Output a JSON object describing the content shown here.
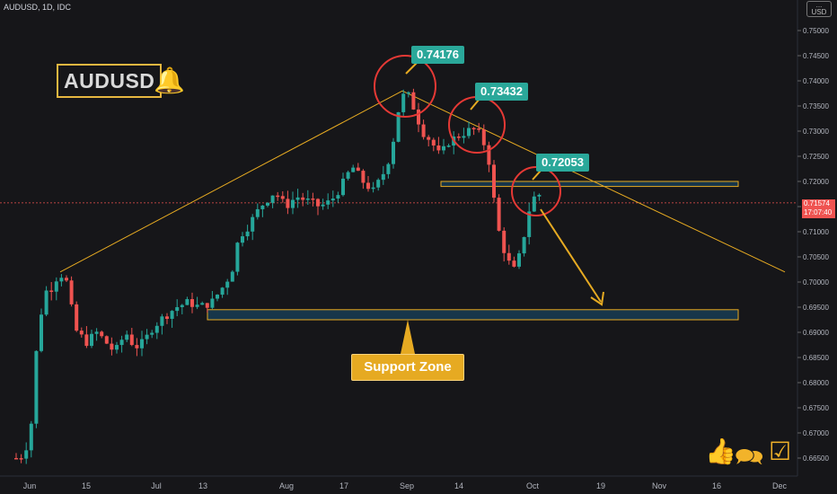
{
  "header": {
    "symbol_line": "AUDUSD, 1D, IDC"
  },
  "currency": {
    "line1": "...",
    "line2": "USD"
  },
  "title": {
    "symbol": "AUDUSD"
  },
  "annotations": {
    "peak1": "0.74176",
    "peak2": "0.73432",
    "peak3": "0.72053",
    "support_label": "Support Zone"
  },
  "price_tag": {
    "price": "0.71574",
    "countdown": "17:07:40"
  },
  "colors": {
    "up": "#26a69a",
    "down": "#ef5350",
    "accent": "#e6aa22",
    "circle": "#e53935",
    "trend": "#e6aa22"
  },
  "icons": [
    "thumbs-up-icon",
    "comments-icon",
    "check-box-icon"
  ],
  "chart_data": {
    "type": "candlestick",
    "ylim": [
      0.662,
      0.758
    ],
    "y_ticks": [
      "0.75000",
      "0.74500",
      "0.74000",
      "0.73500",
      "0.73000",
      "0.72500",
      "0.72000",
      "0.71500",
      "0.71000",
      "0.70500",
      "0.70000",
      "0.69500",
      "0.69000",
      "0.68500",
      "0.68000",
      "0.67500",
      "0.67000",
      "0.66500"
    ],
    "x_ticks": [
      "Jun",
      "15",
      "Jul",
      "13",
      "Aug",
      "17",
      "Sep",
      "14",
      "Oct",
      "19",
      "Nov",
      "16",
      "Dec"
    ],
    "candles_from": "Jun",
    "candles_to": "Oct",
    "current_price": 0.71574,
    "resistance_zone": [
      0.719,
      0.72
    ],
    "support_zone": [
      0.6925,
      0.6945
    ],
    "trendlines": [
      {
        "from": [
          "Jun 10",
          0.702
        ],
        "to": [
          "Aug 31",
          0.738
        ]
      },
      {
        "from": [
          "Aug 31",
          0.738
        ],
        "to": [
          "Dec 1",
          0.702
        ]
      }
    ],
    "peaks": [
      0.74176,
      0.73432,
      0.72053
    ]
  }
}
